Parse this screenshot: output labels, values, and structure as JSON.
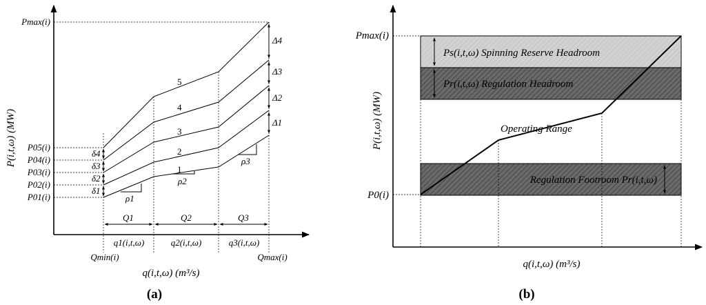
{
  "panel_a": {
    "caption": "(a)",
    "y_axis_label": "P(i,t,ω) (MW)",
    "x_axis_label": "q(i,t,ω) (m³/s)",
    "pmax_label": "Pmax(i)",
    "qmin_label": "Qmin(i)",
    "qmax_label": "Qmax(i)",
    "p0_labels": [
      "P01(i)",
      "P02(i)",
      "P03(i)",
      "P04(i)",
      "P05(i)"
    ],
    "delta_small": [
      "δ1",
      "δ2",
      "δ3",
      "δ4"
    ],
    "delta_big": [
      "Δ1",
      "Δ2",
      "Δ3",
      "Δ4"
    ],
    "curve_numbers": [
      "1",
      "2",
      "3",
      "4",
      "5"
    ],
    "slopes": [
      "ρ1",
      "ρ2",
      "ρ3"
    ],
    "segment_widths": [
      "Q1",
      "Q2",
      "Q3"
    ],
    "segment_flows": [
      "q1(i,t,ω)",
      "q2(i,t,ω)",
      "q3(i,t,ω)"
    ]
  },
  "panel_b": {
    "caption": "(b)",
    "y_axis_label": "P(i,t,ω) (MW)",
    "x_axis_label": "q(i,t,ω) (m³/s)",
    "pmax_label": "Pmax(i)",
    "p0_label": "P0(i)",
    "spinning_label": "Ps(i,t,ω) Spinning Reserve Headroom",
    "regulation_label": "Pr(i,t,ω) Regulation Headroom",
    "operating_label": "Operating Range",
    "footroom_label": "Regulation Footroom Pr(i,t,ω)"
  }
}
